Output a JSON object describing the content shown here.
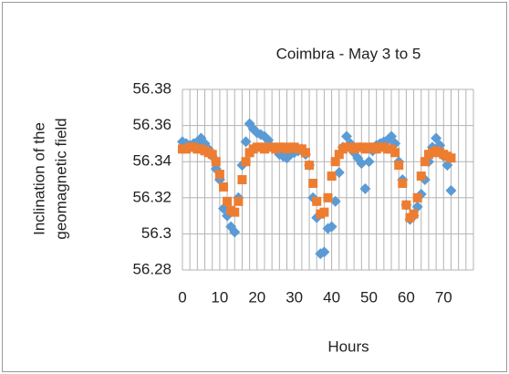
{
  "chart_data": {
    "type": "scatter",
    "title": "Coimbra - May 3 to 5",
    "x_label": "Hours",
    "y_label": [
      "Inclination of the",
      "geomagnetic field"
    ],
    "xlim": [
      0,
      78
    ],
    "xticks": [
      0,
      10,
      20,
      30,
      40,
      50,
      60,
      70
    ],
    "x_minor_step": 2,
    "ylim": [
      56.28,
      56.38
    ],
    "yticks": [
      56.28,
      56.3,
      56.32,
      56.34,
      56.36,
      56.38
    ],
    "grid": true,
    "x": [
      0,
      1,
      2,
      3,
      4,
      5,
      6,
      7,
      8,
      9,
      10,
      11,
      12,
      13,
      14,
      15,
      16,
      17,
      18,
      19,
      20,
      21,
      22,
      23,
      24,
      25,
      26,
      27,
      28,
      29,
      30,
      31,
      32,
      33,
      34,
      35,
      36,
      37,
      38,
      39,
      40,
      41,
      42,
      43,
      44,
      45,
      46,
      47,
      48,
      49,
      50,
      51,
      52,
      53,
      54,
      55,
      56,
      57,
      58,
      59,
      60,
      61,
      62,
      63,
      64,
      65,
      66,
      67,
      68,
      69,
      70,
      71,
      72
    ],
    "series": [
      {
        "color": "#5b9bd5",
        "marker": "diamond",
        "values": [
          56.351,
          56.35,
          56.349,
          56.35,
          56.351,
          56.353,
          56.35,
          56.347,
          56.343,
          56.336,
          56.33,
          56.314,
          56.31,
          56.304,
          56.301,
          56.32,
          56.338,
          56.351,
          56.361,
          56.358,
          56.356,
          56.355,
          56.354,
          56.352,
          56.348,
          56.347,
          56.344,
          56.343,
          56.342,
          56.344,
          56.345,
          56.346,
          56.347,
          56.344,
          56.338,
          56.32,
          56.309,
          56.289,
          56.29,
          56.303,
          56.304,
          56.318,
          56.334,
          56.348,
          56.354,
          56.35,
          56.345,
          56.342,
          56.339,
          56.325,
          56.34,
          56.346,
          56.349,
          56.35,
          56.351,
          56.352,
          56.354,
          56.35,
          56.34,
          56.33,
          56.316,
          56.308,
          56.31,
          56.315,
          56.322,
          56.33,
          56.34,
          56.348,
          56.353,
          56.349,
          56.343,
          56.338,
          56.324
        ]
      },
      {
        "color": "#ed7d31",
        "marker": "square",
        "values": [
          56.347,
          56.347,
          56.348,
          56.348,
          56.347,
          56.347,
          56.346,
          56.345,
          56.344,
          56.34,
          56.333,
          56.326,
          56.318,
          56.313,
          56.312,
          56.318,
          56.33,
          56.34,
          56.345,
          56.347,
          56.348,
          56.348,
          56.347,
          56.348,
          56.348,
          56.347,
          56.348,
          56.348,
          56.347,
          56.348,
          56.348,
          56.347,
          56.347,
          56.345,
          56.338,
          56.328,
          56.318,
          56.311,
          56.312,
          56.32,
          56.332,
          56.34,
          56.344,
          56.347,
          56.348,
          56.348,
          56.347,
          56.348,
          56.348,
          56.347,
          56.348,
          56.348,
          56.347,
          56.348,
          56.348,
          56.347,
          56.347,
          56.345,
          56.338,
          56.328,
          56.316,
          56.309,
          56.311,
          56.32,
          56.332,
          56.34,
          56.344,
          56.345,
          56.346,
          56.345,
          56.344,
          56.343,
          56.342
        ]
      }
    ]
  }
}
